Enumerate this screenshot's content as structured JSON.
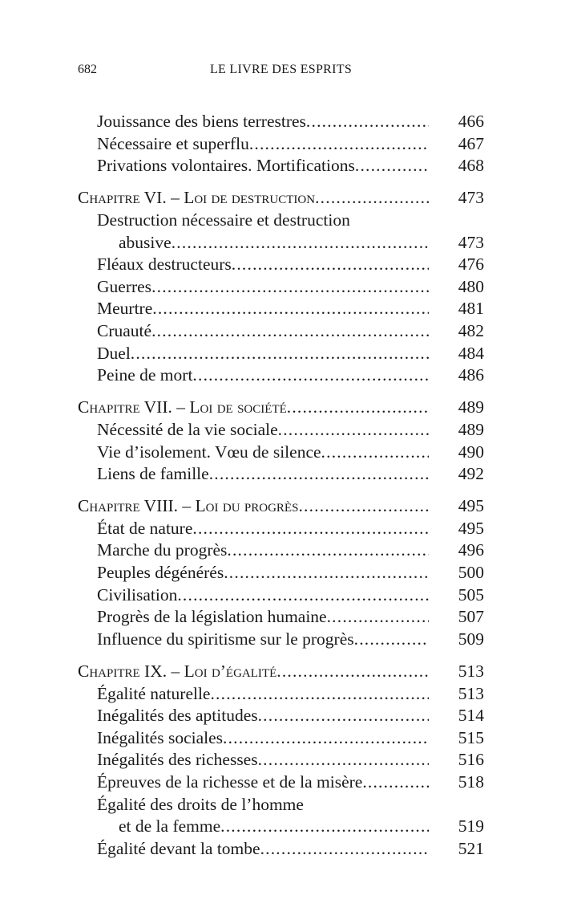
{
  "header": {
    "page_number": "682",
    "title": "LE LIVRE DES ESPRITS"
  },
  "groups": [
    {
      "entries": [
        {
          "lines": [
            "Jouissance des biens terrestres"
          ],
          "page": "466"
        },
        {
          "lines": [
            "Nécessaire et superflu"
          ],
          "page": "467"
        },
        {
          "lines": [
            "Privations volontaires. Mortifications"
          ],
          "page": "468"
        }
      ]
    },
    {
      "chapter": {
        "title": "Chapitre VI. – Loi de destruction",
        "page": "473"
      },
      "entries": [
        {
          "lines": [
            "Destruction nécessaire et destruction",
            "abusive"
          ],
          "page": "473"
        },
        {
          "lines": [
            "Fléaux destructeurs"
          ],
          "page": "476"
        },
        {
          "lines": [
            "Guerres"
          ],
          "page": "480"
        },
        {
          "lines": [
            "Meurtre"
          ],
          "page": "481"
        },
        {
          "lines": [
            "Cruauté"
          ],
          "page": "482"
        },
        {
          "lines": [
            "Duel"
          ],
          "page": "484"
        },
        {
          "lines": [
            "Peine de mort"
          ],
          "page": "486"
        }
      ]
    },
    {
      "chapter": {
        "title": "Chapitre VII. – Loi de société",
        "page": "489"
      },
      "entries": [
        {
          "lines": [
            "Nécessité de la vie sociale"
          ],
          "page": "489"
        },
        {
          "lines": [
            "Vie d’isolement. Vœu de silence"
          ],
          "page": "490"
        },
        {
          "lines": [
            "Liens de famille"
          ],
          "page": "492"
        }
      ]
    },
    {
      "chapter": {
        "title": "Chapitre VIII. – Loi du progrès",
        "page": "495"
      },
      "entries": [
        {
          "lines": [
            "État de nature"
          ],
          "page": "495"
        },
        {
          "lines": [
            "Marche du progrès"
          ],
          "page": "496"
        },
        {
          "lines": [
            "Peuples dégénérés"
          ],
          "page": "500"
        },
        {
          "lines": [
            "Civilisation"
          ],
          "page": "505"
        },
        {
          "lines": [
            "Progrès de la législation humaine"
          ],
          "page": "507"
        },
        {
          "lines": [
            "Influence du spiritisme sur le progrès"
          ],
          "page": "509"
        }
      ]
    },
    {
      "chapter": {
        "title": "Chapitre IX. – Loi d’égalité",
        "page": "513"
      },
      "entries": [
        {
          "lines": [
            "Égalité naturelle"
          ],
          "page": "513"
        },
        {
          "lines": [
            "Inégalités des aptitudes"
          ],
          "page": "514"
        },
        {
          "lines": [
            "Inégalités sociales"
          ],
          "page": "515"
        },
        {
          "lines": [
            "Inégalités des richesses"
          ],
          "page": "516"
        },
        {
          "lines": [
            "Épreuves de la richesse et de la misère"
          ],
          "page": "518"
        },
        {
          "lines": [
            "Égalité des droits de l’homme",
            "et de la femme"
          ],
          "page": "519"
        },
        {
          "lines": [
            "Égalité devant la tombe"
          ],
          "page": "521"
        }
      ]
    }
  ]
}
